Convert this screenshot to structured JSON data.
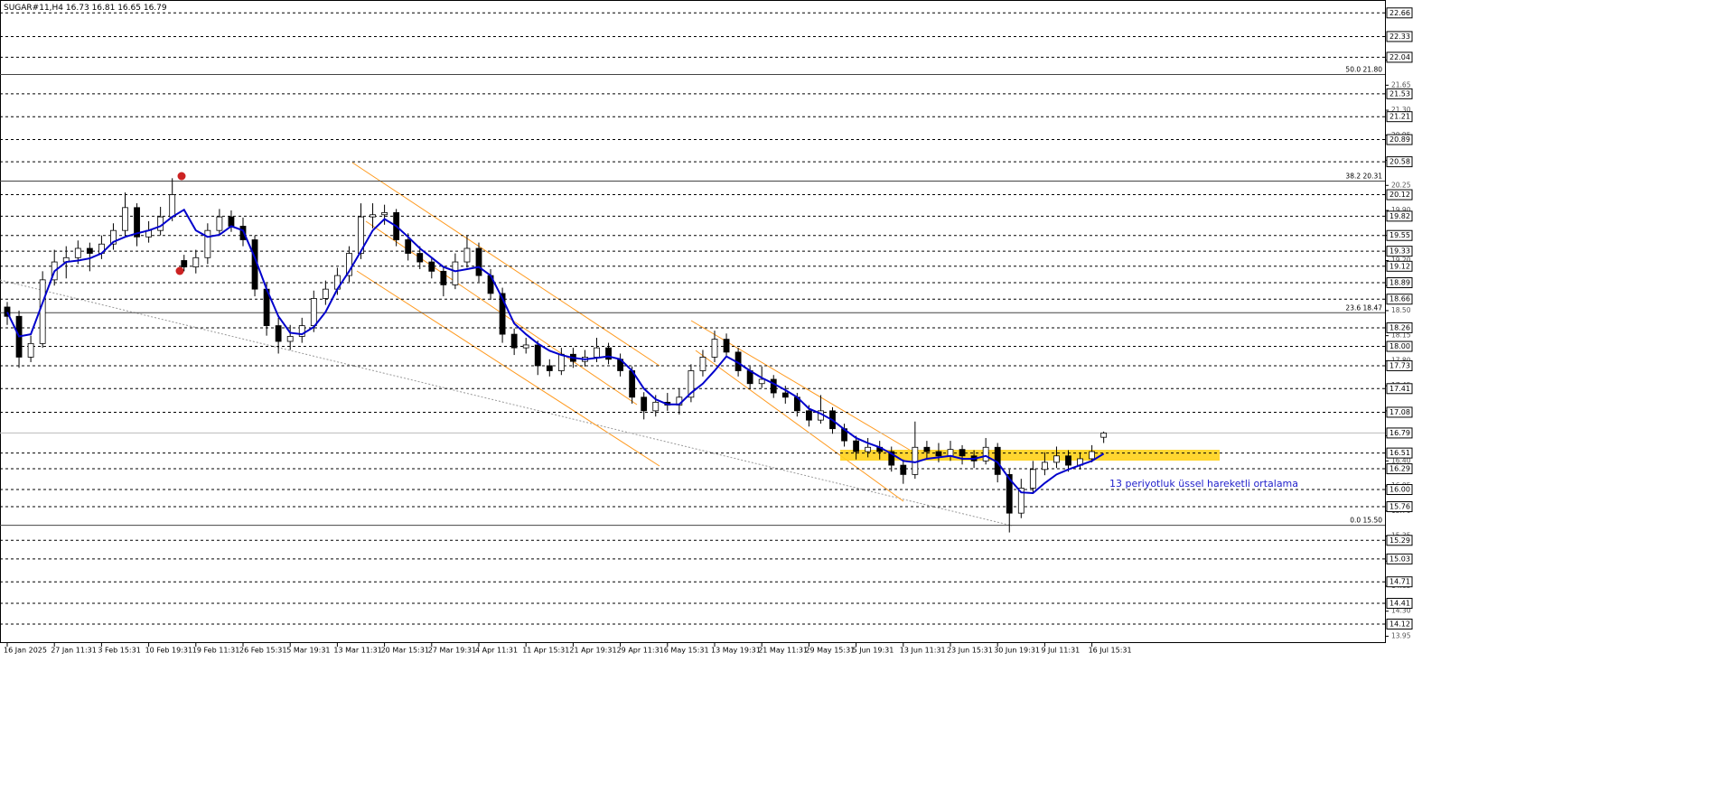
{
  "chart_data": {
    "type": "candlestick",
    "title": "SUGAR#11,H4",
    "categories": [
      "16 Jan 2025",
      null,
      null,
      null,
      "27 Jan 11:31",
      null,
      null,
      null,
      "3 Feb 15:31",
      null,
      null,
      null,
      "10 Feb 19:31",
      null,
      null,
      null,
      "19 Feb 11:31",
      null,
      null,
      null,
      "26 Feb 15:31",
      null,
      null,
      null,
      "5 Mar 19:31",
      null,
      null,
      null,
      "13 Mar 11:31",
      null,
      null,
      null,
      "20 Mar 15:31",
      null,
      null,
      null,
      "27 Mar 19:31",
      null,
      null,
      null,
      "4 Apr 11:31",
      null,
      null,
      null,
      "11 Apr 15:31",
      null,
      null,
      null,
      "21 Apr 19:31",
      null,
      null,
      null,
      "29 Apr 11:31",
      null,
      null,
      null,
      "6 May 15:31",
      null,
      null,
      null,
      "13 May 19:31",
      null,
      null,
      null,
      "21 May 11:31",
      null,
      null,
      null,
      "29 May 15:31",
      null,
      null,
      null,
      "5 Jun 19:31",
      null,
      null,
      null,
      "13 Jun 11:31",
      null,
      null,
      null,
      "23 Jun 15:31",
      null,
      null,
      null,
      "30 Jun 19:31",
      null,
      null,
      null,
      "9 Jul 11:31",
      null,
      null,
      null,
      "16 Jul 15:31",
      null
    ],
    "open": [
      18.55,
      18.42,
      17.85,
      18.04,
      18.93,
      19.18,
      19.24,
      19.37,
      19.3,
      19.43,
      19.62,
      19.94,
      19.53,
      19.62,
      19.81,
      19.2,
      19.11,
      19.24,
      19.62,
      19.81,
      19.68,
      19.49,
      18.8,
      18.29,
      18.07,
      18.14,
      18.29,
      18.67,
      18.8,
      18.99,
      19.3,
      19.81,
      19.84,
      19.87,
      19.49,
      19.3,
      19.18,
      19.05,
      18.86,
      19.18,
      19.37,
      18.99,
      18.74,
      18.17,
      17.98,
      18.02,
      17.73,
      17.66,
      17.89,
      17.79,
      17.85,
      17.98,
      17.82,
      17.66,
      17.29,
      17.1,
      17.22,
      17.18,
      17.29,
      17.66,
      17.85,
      18.1,
      17.92,
      17.66,
      17.48,
      17.54,
      17.35,
      17.29,
      17.1,
      16.97,
      17.1,
      16.85,
      16.68,
      16.53,
      16.59,
      16.53,
      16.34,
      16.21,
      16.59,
      16.53,
      16.47,
      16.56,
      16.47,
      16.4,
      16.59,
      16.21,
      15.67,
      16.02,
      16.28,
      16.38,
      16.47,
      16.34,
      16.43,
      16.73
    ],
    "high": [
      18.62,
      18.5,
      18.15,
      19.05,
      19.35,
      19.4,
      19.48,
      19.45,
      19.55,
      19.72,
      20.15,
      20.0,
      19.75,
      19.95,
      20.35,
      19.28,
      19.35,
      19.72,
      19.92,
      19.9,
      19.8,
      19.55,
      18.88,
      18.4,
      18.3,
      18.4,
      18.78,
      18.92,
      19.1,
      19.4,
      20.0,
      20.0,
      19.98,
      19.92,
      19.58,
      19.4,
      19.25,
      19.12,
      19.3,
      19.55,
      19.45,
      19.08,
      18.82,
      18.25,
      18.12,
      18.08,
      17.82,
      17.98,
      17.98,
      17.95,
      18.12,
      18.05,
      17.9,
      17.72,
      17.36,
      17.32,
      17.35,
      17.4,
      17.75,
      17.95,
      18.22,
      18.18,
      17.98,
      17.72,
      17.72,
      17.6,
      17.45,
      17.35,
      17.18,
      17.32,
      17.15,
      16.92,
      16.75,
      16.72,
      16.68,
      16.6,
      16.42,
      16.95,
      16.68,
      16.65,
      16.68,
      16.62,
      16.55,
      16.72,
      16.65,
      16.28,
      16.15,
      16.4,
      16.52,
      16.6,
      16.55,
      16.52,
      16.62,
      16.81
    ],
    "low": [
      18.3,
      17.7,
      17.78,
      17.98,
      18.85,
      18.95,
      19.15,
      19.05,
      19.22,
      19.35,
      19.55,
      19.4,
      19.45,
      19.55,
      19.75,
      19.05,
      19.02,
      19.15,
      19.55,
      19.6,
      19.4,
      18.7,
      18.15,
      17.9,
      17.95,
      18.05,
      18.2,
      18.58,
      18.72,
      18.9,
      19.22,
      19.65,
      19.7,
      19.4,
      19.2,
      19.08,
      18.95,
      18.7,
      18.8,
      19.1,
      18.9,
      18.65,
      18.05,
      17.88,
      17.9,
      17.6,
      17.58,
      17.6,
      17.7,
      17.72,
      17.78,
      17.75,
      17.58,
      17.2,
      16.98,
      17.02,
      17.1,
      17.05,
      17.22,
      17.58,
      17.78,
      17.85,
      17.58,
      17.4,
      17.42,
      17.28,
      17.2,
      17.02,
      16.88,
      16.92,
      16.78,
      16.6,
      16.42,
      16.45,
      16.42,
      16.25,
      16.08,
      16.15,
      16.42,
      16.38,
      16.4,
      16.35,
      16.3,
      16.35,
      16.1,
      15.4,
      15.6,
      15.95,
      16.2,
      16.3,
      16.25,
      16.28,
      16.38,
      16.65
    ],
    "close": [
      18.42,
      17.85,
      18.04,
      18.93,
      19.18,
      19.24,
      19.37,
      19.3,
      19.43,
      19.62,
      19.94,
      19.53,
      19.62,
      19.81,
      20.12,
      19.11,
      19.24,
      19.62,
      19.81,
      19.68,
      19.49,
      18.8,
      18.29,
      18.07,
      18.14,
      18.29,
      18.67,
      18.8,
      18.99,
      19.3,
      19.81,
      19.84,
      19.87,
      19.49,
      19.3,
      19.18,
      19.05,
      18.86,
      19.18,
      19.37,
      18.99,
      18.74,
      18.17,
      17.98,
      18.02,
      17.73,
      17.66,
      17.89,
      17.79,
      17.85,
      17.98,
      17.82,
      17.66,
      17.29,
      17.1,
      17.22,
      17.18,
      17.29,
      17.66,
      17.85,
      18.1,
      17.92,
      17.66,
      17.48,
      17.54,
      17.35,
      17.29,
      17.1,
      16.97,
      17.1,
      16.85,
      16.68,
      16.53,
      16.59,
      16.53,
      16.34,
      16.21,
      16.59,
      16.53,
      16.47,
      16.56,
      16.47,
      16.4,
      16.59,
      16.21,
      15.67,
      16.02,
      16.28,
      16.38,
      16.47,
      16.34,
      16.43,
      16.53,
      16.79
    ],
    "ema": {
      "color": "#0000cc",
      "values": [
        18.48,
        18.14,
        18.17,
        18.61,
        19.05,
        19.18,
        19.2,
        19.23,
        19.3,
        19.46,
        19.53,
        19.58,
        19.62,
        19.68,
        19.81,
        19.91,
        19.62,
        19.53,
        19.56,
        19.68,
        19.62,
        19.24,
        18.8,
        18.42,
        18.19,
        18.17,
        18.27,
        18.48,
        18.8,
        19.05,
        19.33,
        19.62,
        19.78,
        19.68,
        19.53,
        19.37,
        19.24,
        19.11,
        19.05,
        19.08,
        19.11,
        18.99,
        18.67,
        18.32,
        18.17,
        18.04,
        17.94,
        17.88,
        17.84,
        17.82,
        17.84,
        17.86,
        17.82,
        17.66,
        17.41,
        17.26,
        17.19,
        17.19,
        17.35,
        17.48,
        17.66,
        17.86,
        17.77,
        17.66,
        17.56,
        17.48,
        17.39,
        17.29,
        17.13,
        17.06,
        16.97,
        16.84,
        16.72,
        16.65,
        16.59,
        16.5,
        16.4,
        16.38,
        16.43,
        16.45,
        16.47,
        16.43,
        16.43,
        16.47,
        16.38,
        16.15,
        15.96,
        15.95,
        16.09,
        16.21,
        16.28,
        16.34,
        16.4,
        16.5
      ]
    },
    "annotation": "13 periyotluk üssel hareketli ortalama",
    "ylim": [
      13.88,
      22.79
    ],
    "yticks": [
      13.95,
      {
        "value": 14.3,
        "label": "14.30"
      },
      14.65,
      {
        "value": 15.0,
        "label": "15.00"
      },
      15.35,
      {
        "value": 15.7,
        "label": "15.70"
      },
      16.05,
      {
        "value": 16.4,
        "label": "16.40"
      },
      16.75,
      {
        "value": 17.1,
        "label": "17.10"
      },
      17.45,
      {
        "value": 17.8,
        "label": "17.80"
      },
      18.15,
      {
        "value": 18.5,
        "label": "18.50"
      },
      18.85,
      {
        "value": 19.2,
        "label": "19.20"
      },
      19.55,
      {
        "value": 19.9,
        "label": "19.90"
      },
      20.25,
      {
        "value": 20.6,
        "label": "20.60"
      },
      20.95,
      {
        "value": 21.3,
        "label": "21.30"
      },
      21.65,
      {
        "value": 22.0,
        "label": "22.00"
      }
    ],
    "levels": [
      22.66,
      22.33,
      22.04,
      21.53,
      21.21,
      20.89,
      20.58,
      20.12,
      19.82,
      19.55,
      19.33,
      19.12,
      18.89,
      18.66,
      18.26,
      {
        "value": 18.0,
        "label": "18.00"
      },
      17.73,
      17.41,
      17.08,
      16.51,
      16.29,
      {
        "value": 16.0,
        "label": "16.00"
      },
      15.76,
      15.29,
      15.03,
      14.71,
      14.41,
      14.12
    ],
    "price_line": 16.79,
    "fib_levels": [
      {
        "ratio": "50.0",
        "value": 21.8,
        "label": "21.80"
      },
      {
        "ratio": "38.2",
        "value": 20.31,
        "label": "20.31"
      },
      {
        "ratio": "23.6",
        "value": 18.47,
        "label": "18.47"
      },
      {
        "ratio": "0.0",
        "value": 15.5,
        "label": "15.50"
      }
    ]
  }
}
